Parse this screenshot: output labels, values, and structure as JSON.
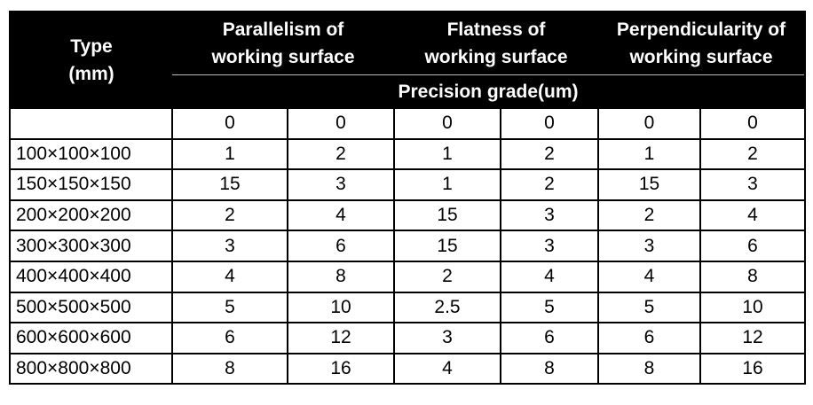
{
  "header": {
    "type": [
      "Type",
      "(mm)"
    ],
    "groups": [
      [
        "Parallelism of",
        "working surface"
      ],
      [
        "Flatness of",
        "working surface"
      ],
      [
        "Perpendicularity of",
        "working surface"
      ]
    ],
    "precision": "Precision grade(um)"
  },
  "table": {
    "rows": [
      [
        null,
        0,
        0,
        0,
        0,
        0,
        0
      ],
      [
        "100×100×100",
        1,
        2,
        1,
        2,
        1,
        2
      ],
      [
        "150×150×150",
        15,
        3,
        1,
        2,
        15,
        3
      ],
      [
        "200×200×200",
        2,
        4,
        15,
        3,
        2,
        4
      ],
      [
        "300×300×300",
        3,
        6,
        15,
        3,
        3,
        6
      ],
      [
        "400×400×400",
        4,
        8,
        2,
        4,
        4,
        8
      ],
      [
        "500×500×500",
        5,
        10,
        2.5,
        5,
        5,
        10
      ],
      [
        "600×600×600",
        6,
        12,
        3,
        6,
        6,
        12
      ],
      [
        "800×800×800",
        8,
        16,
        4,
        8,
        8,
        16
      ]
    ]
  }
}
